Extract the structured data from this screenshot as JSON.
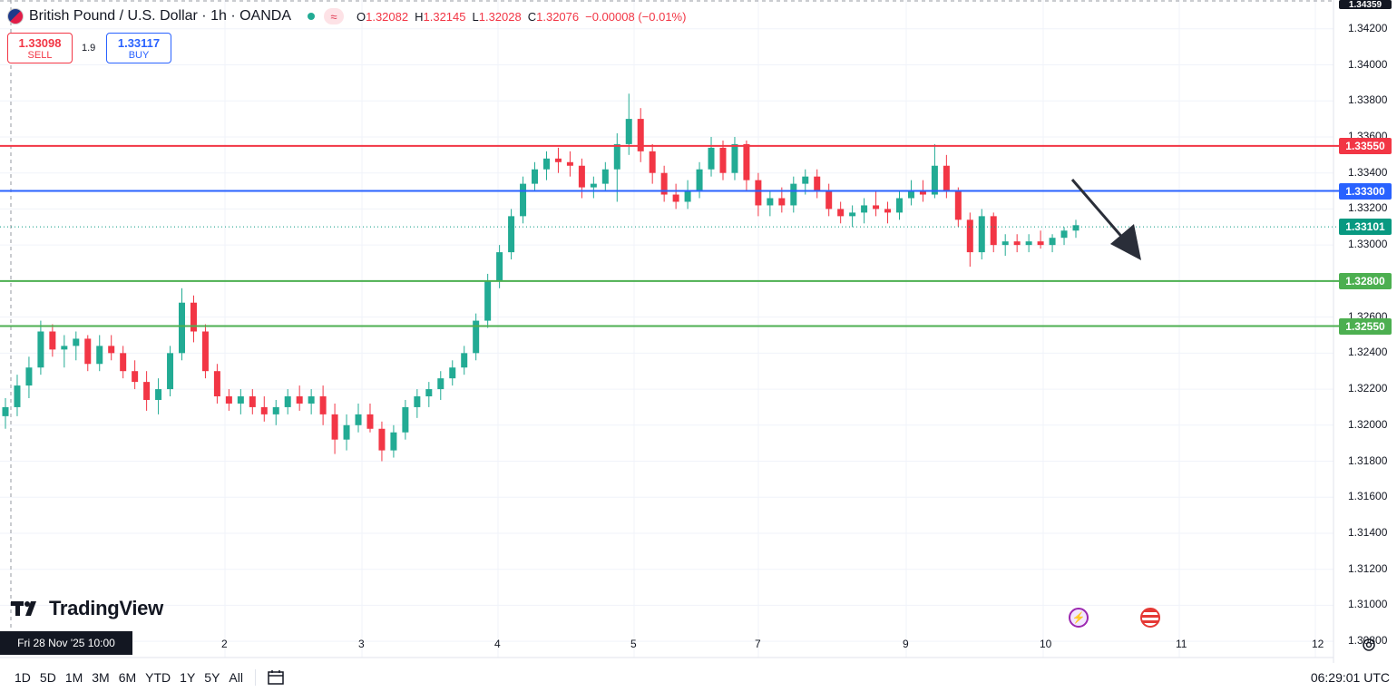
{
  "header": {
    "symbol": "British Pound / U.S. Dollar · 1h · OANDA",
    "open_label": "O",
    "open": "1.32082",
    "high_label": "H",
    "high": "1.32145",
    "low_label": "L",
    "low": "1.32028",
    "close_label": "C",
    "close": "1.32076",
    "change": "−0.00008 (−0.01%)"
  },
  "trade": {
    "sell_price": "1.33098",
    "sell_label": "SELL",
    "spread": "1.9",
    "buy_price": "1.33117",
    "buy_label": "BUY"
  },
  "price_axis": {
    "labels": [
      "1.34200",
      "1.34000",
      "1.33800",
      "1.33600",
      "1.33400",
      "1.33200",
      "1.33000",
      "1.32600",
      "1.32400",
      "1.32200",
      "1.32000",
      "1.31800",
      "1.31600",
      "1.31400",
      "1.31200",
      "1.31000",
      "1.30800"
    ],
    "top_partial": "1.34359"
  },
  "levels": {
    "resistance_1": "1.33550",
    "pivot": "1.33300",
    "current": "1.33101",
    "support_1": "1.32800",
    "support_2": "1.32550"
  },
  "time_axis": {
    "labels": [
      "2",
      "3",
      "4",
      "5",
      "7",
      "9",
      "10",
      "11",
      "12"
    ],
    "crosshair_date": "Fri 28 Nov '25   10:00"
  },
  "logo": {
    "text": "TradingView"
  },
  "toolbar": {
    "timeframes": [
      "1D",
      "5D",
      "1M",
      "3M",
      "6M",
      "YTD",
      "1Y",
      "5Y",
      "All"
    ],
    "clock": "06:29:01 UTC"
  },
  "colors": {
    "up": "#22ab94",
    "down": "#f23645",
    "resistance": "#f23645",
    "pivot": "#2962ff",
    "support": "#4caf50",
    "current": "#089981",
    "arrow": "#2a2e39"
  },
  "icons": {
    "settings": "gear-icon",
    "calendar": "calendar-icon",
    "event_1": "lightning-icon",
    "event_2": "us-flag-icon"
  },
  "chart_data": {
    "type": "candlestick",
    "title": "British Pound / U.S. Dollar · 1h · OANDA",
    "ylim": [
      1.3068,
      1.3436
    ],
    "horizontal_lines": [
      1.3355,
      1.333,
      1.331,
      1.328,
      1.3255
    ],
    "candles": [
      [
        1.3205,
        1.3215,
        1.3198,
        1.321
      ],
      [
        1.321,
        1.3228,
        1.3205,
        1.3222
      ],
      [
        1.3222,
        1.3238,
        1.3215,
        1.3232
      ],
      [
        1.3232,
        1.3258,
        1.3228,
        1.3252
      ],
      [
        1.3252,
        1.3256,
        1.3238,
        1.3242
      ],
      [
        1.3242,
        1.325,
        1.3232,
        1.3244
      ],
      [
        1.3244,
        1.3252,
        1.3236,
        1.3248
      ],
      [
        1.3248,
        1.325,
        1.323,
        1.3234
      ],
      [
        1.3234,
        1.325,
        1.323,
        1.3244
      ],
      [
        1.3244,
        1.325,
        1.3236,
        1.324
      ],
      [
        1.324,
        1.3244,
        1.3226,
        1.323
      ],
      [
        1.323,
        1.3236,
        1.322,
        1.3224
      ],
      [
        1.3224,
        1.323,
        1.3208,
        1.3214
      ],
      [
        1.3214,
        1.3226,
        1.3206,
        1.322
      ],
      [
        1.322,
        1.3244,
        1.3216,
        1.324
      ],
      [
        1.324,
        1.3276,
        1.3236,
        1.3268
      ],
      [
        1.3268,
        1.3272,
        1.3246,
        1.3252
      ],
      [
        1.3252,
        1.3256,
        1.3226,
        1.323
      ],
      [
        1.323,
        1.3234,
        1.3212,
        1.3216
      ],
      [
        1.3216,
        1.322,
        1.3208,
        1.3212
      ],
      [
        1.3212,
        1.322,
        1.3206,
        1.3216
      ],
      [
        1.3216,
        1.322,
        1.3206,
        1.321
      ],
      [
        1.321,
        1.3216,
        1.3202,
        1.3206
      ],
      [
        1.3206,
        1.3214,
        1.32,
        1.321
      ],
      [
        1.321,
        1.322,
        1.3206,
        1.3216
      ],
      [
        1.3216,
        1.3222,
        1.3208,
        1.3212
      ],
      [
        1.3212,
        1.322,
        1.3206,
        1.3216
      ],
      [
        1.3216,
        1.3222,
        1.32,
        1.3206
      ],
      [
        1.3206,
        1.3212,
        1.3184,
        1.3192
      ],
      [
        1.3192,
        1.3206,
        1.3186,
        1.32
      ],
      [
        1.32,
        1.3212,
        1.3196,
        1.3206
      ],
      [
        1.3206,
        1.3212,
        1.3196,
        1.3198
      ],
      [
        1.3198,
        1.3202,
        1.318,
        1.3186
      ],
      [
        1.3186,
        1.32,
        1.3182,
        1.3196
      ],
      [
        1.3196,
        1.3214,
        1.3192,
        1.321
      ],
      [
        1.321,
        1.322,
        1.3204,
        1.3216
      ],
      [
        1.3216,
        1.3224,
        1.321,
        1.322
      ],
      [
        1.322,
        1.323,
        1.3214,
        1.3226
      ],
      [
        1.3226,
        1.3236,
        1.3222,
        1.3232
      ],
      [
        1.3232,
        1.3244,
        1.3228,
        1.324
      ],
      [
        1.324,
        1.3262,
        1.3236,
        1.3258
      ],
      [
        1.3258,
        1.3284,
        1.3254,
        1.328
      ],
      [
        1.328,
        1.33,
        1.3276,
        1.3296
      ],
      [
        1.3296,
        1.332,
        1.3292,
        1.3316
      ],
      [
        1.3316,
        1.3338,
        1.3312,
        1.3334
      ],
      [
        1.3334,
        1.3346,
        1.333,
        1.3342
      ],
      [
        1.3342,
        1.3352,
        1.3336,
        1.3348
      ],
      [
        1.3348,
        1.3354,
        1.334,
        1.3346
      ],
      [
        1.3346,
        1.3352,
        1.3338,
        1.3344
      ],
      [
        1.3344,
        1.3348,
        1.3326,
        1.3332
      ],
      [
        1.3332,
        1.3338,
        1.3326,
        1.3334
      ],
      [
        1.3334,
        1.3346,
        1.333,
        1.3342
      ],
      [
        1.3342,
        1.3362,
        1.3324,
        1.3356
      ],
      [
        1.3356,
        1.3384,
        1.335,
        1.337
      ],
      [
        1.337,
        1.3376,
        1.3346,
        1.3352
      ],
      [
        1.3352,
        1.3356,
        1.3334,
        1.334
      ],
      [
        1.334,
        1.3344,
        1.3324,
        1.3328
      ],
      [
        1.3328,
        1.3334,
        1.332,
        1.3324
      ],
      [
        1.3324,
        1.3336,
        1.332,
        1.333
      ],
      [
        1.333,
        1.3346,
        1.3326,
        1.3342
      ],
      [
        1.3342,
        1.336,
        1.3338,
        1.3354
      ],
      [
        1.3354,
        1.3358,
        1.3336,
        1.334
      ],
      [
        1.334,
        1.336,
        1.3336,
        1.3356
      ],
      [
        1.3356,
        1.3358,
        1.333,
        1.3336
      ],
      [
        1.3336,
        1.334,
        1.3316,
        1.3322
      ],
      [
        1.3322,
        1.333,
        1.3316,
        1.3326
      ],
      [
        1.3326,
        1.3332,
        1.3318,
        1.3322
      ],
      [
        1.3322,
        1.3338,
        1.3318,
        1.3334
      ],
      [
        1.3334,
        1.3342,
        1.3328,
        1.3338
      ],
      [
        1.3338,
        1.3342,
        1.3326,
        1.333
      ],
      [
        1.333,
        1.3334,
        1.3316,
        1.332
      ],
      [
        1.332,
        1.3324,
        1.3312,
        1.3316
      ],
      [
        1.3316,
        1.3322,
        1.331,
        1.3318
      ],
      [
        1.3318,
        1.3326,
        1.3312,
        1.3322
      ],
      [
        1.3322,
        1.333,
        1.3316,
        1.332
      ],
      [
        1.332,
        1.3324,
        1.3312,
        1.3318
      ],
      [
        1.3318,
        1.333,
        1.3314,
        1.3326
      ],
      [
        1.3326,
        1.3336,
        1.3322,
        1.333
      ],
      [
        1.333,
        1.3336,
        1.3324,
        1.3328
      ],
      [
        1.3328,
        1.3356,
        1.3326,
        1.3344
      ],
      [
        1.3344,
        1.335,
        1.3326,
        1.333
      ],
      [
        1.333,
        1.3332,
        1.331,
        1.3314
      ],
      [
        1.3314,
        1.3318,
        1.3288,
        1.3296
      ],
      [
        1.3296,
        1.332,
        1.3292,
        1.3316
      ],
      [
        1.3316,
        1.3318,
        1.3296,
        1.33
      ],
      [
        1.33,
        1.3306,
        1.3294,
        1.3302
      ],
      [
        1.3302,
        1.3306,
        1.3296,
        1.33
      ],
      [
        1.33,
        1.3306,
        1.3296,
        1.3302
      ],
      [
        1.3302,
        1.3308,
        1.3298,
        1.33
      ],
      [
        1.33,
        1.3306,
        1.3296,
        1.3304
      ],
      [
        1.3304,
        1.331,
        1.33,
        1.3308
      ],
      [
        1.3308,
        1.3314,
        1.3304,
        1.3311
      ]
    ]
  }
}
